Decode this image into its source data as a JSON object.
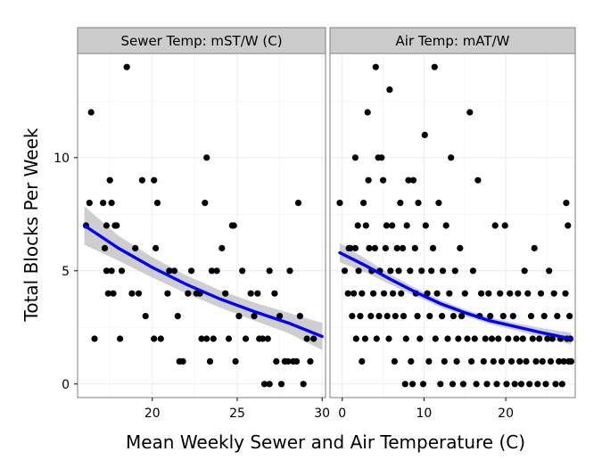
{
  "chart_data": {
    "type": "scatter",
    "ylabel": "Total Blocks Per Week",
    "xlabel": "Mean Weekly Sewer and Air Temperature (C)",
    "colors": {
      "points": "#000000",
      "smooth_line": "#0000ff",
      "ribbon": "#bdbdbd",
      "strip": "#cccccc",
      "grid": "#ececec"
    },
    "ylim": [
      -0.6,
      14.6
    ],
    "y_ticks": [
      0,
      5,
      10
    ],
    "facets": [
      {
        "title": "Sewer Temp: mST/W (C)",
        "xlim": [
          15.6,
          30.2
        ],
        "x_ticks": [
          20,
          25,
          30
        ],
        "points": [
          [
            16.1,
            7
          ],
          [
            16.3,
            8
          ],
          [
            16.4,
            12
          ],
          [
            16.6,
            2
          ],
          [
            17.1,
            8
          ],
          [
            17.3,
            7
          ],
          [
            17.2,
            6
          ],
          [
            17.4,
            4
          ],
          [
            17.3,
            5
          ],
          [
            17.5,
            9
          ],
          [
            17.6,
            8
          ],
          [
            17.6,
            5
          ],
          [
            17.7,
            4
          ],
          [
            17.8,
            7
          ],
          [
            17.9,
            7
          ],
          [
            18.1,
            2
          ],
          [
            18.2,
            5
          ],
          [
            18.5,
            14
          ],
          [
            18.8,
            4
          ],
          [
            19.0,
            6
          ],
          [
            19.2,
            4
          ],
          [
            19.4,
            9
          ],
          [
            19.6,
            3
          ],
          [
            20.1,
            9
          ],
          [
            20.2,
            6
          ],
          [
            20.3,
            8
          ],
          [
            20.1,
            2
          ],
          [
            20.5,
            2
          ],
          [
            20.9,
            4
          ],
          [
            21.0,
            5
          ],
          [
            21.3,
            5
          ],
          [
            21.5,
            3
          ],
          [
            21.6,
            1
          ],
          [
            21.8,
            1
          ],
          [
            22.1,
            4
          ],
          [
            22.3,
            5
          ],
          [
            22.6,
            4
          ],
          [
            22.8,
            4
          ],
          [
            22.9,
            2
          ],
          [
            23.1,
            8
          ],
          [
            23.2,
            10
          ],
          [
            23.2,
            2
          ],
          [
            23.4,
            1
          ],
          [
            23.5,
            5
          ],
          [
            23.6,
            2
          ],
          [
            23.8,
            5
          ],
          [
            24.1,
            6
          ],
          [
            24.3,
            4
          ],
          [
            24.5,
            2
          ],
          [
            24.7,
            7
          ],
          [
            24.8,
            7
          ],
          [
            24.9,
            1
          ],
          [
            25.1,
            3
          ],
          [
            25.3,
            5
          ],
          [
            25.5,
            2
          ],
          [
            25.8,
            4
          ],
          [
            26.0,
            3
          ],
          [
            26.2,
            4
          ],
          [
            26.3,
            2
          ],
          [
            26.5,
            2
          ],
          [
            26.6,
            0
          ],
          [
            26.8,
            2
          ],
          [
            26.9,
            0
          ],
          [
            26.9,
            5
          ],
          [
            27.2,
            4
          ],
          [
            27.3,
            1
          ],
          [
            27.5,
            3
          ],
          [
            27.6,
            0
          ],
          [
            27.8,
            1
          ],
          [
            28.0,
            1
          ],
          [
            28.1,
            5
          ],
          [
            28.3,
            1
          ],
          [
            28.5,
            1
          ],
          [
            28.6,
            8
          ],
          [
            28.7,
            3
          ],
          [
            28.9,
            0
          ],
          [
            29.1,
            2
          ],
          [
            29.3,
            1
          ],
          [
            29.5,
            2
          ]
        ],
        "fit": [
          [
            16,
            7.0
          ],
          [
            18,
            6.0
          ],
          [
            20,
            5.15
          ],
          [
            22,
            4.4
          ],
          [
            24,
            3.75
          ],
          [
            26,
            3.2
          ],
          [
            28,
            2.7
          ],
          [
            30,
            2.1
          ]
        ],
        "ribbon_halfwidth": [
          0.85,
          0.55,
          0.45,
          0.4,
          0.38,
          0.4,
          0.45,
          0.6
        ]
      },
      {
        "title": "Air Temp: mAT/W",
        "xlim": [
          -1.5,
          28.5
        ],
        "x_ticks": [
          0,
          10,
          20
        ],
        "points": [
          [
            -0.3,
            8
          ],
          [
            0.3,
            5
          ],
          [
            0.7,
            4
          ],
          [
            0.8,
            6
          ],
          [
            1.0,
            6
          ],
          [
            1.2,
            3
          ],
          [
            1.4,
            4
          ],
          [
            1.6,
            10
          ],
          [
            1.6,
            6
          ],
          [
            1.7,
            2
          ],
          [
            1.9,
            7
          ],
          [
            2.0,
            5
          ],
          [
            2.2,
            3
          ],
          [
            2.4,
            4
          ],
          [
            2.4,
            1
          ],
          [
            2.6,
            8
          ],
          [
            2.8,
            2
          ],
          [
            2.9,
            7
          ],
          [
            3.1,
            12
          ],
          [
            3.2,
            9
          ],
          [
            3.3,
            6
          ],
          [
            3.5,
            3
          ],
          [
            3.6,
            5
          ],
          [
            3.8,
            4
          ],
          [
            4.0,
            6
          ],
          [
            4.1,
            14
          ],
          [
            4.2,
            2
          ],
          [
            4.4,
            10
          ],
          [
            4.5,
            3
          ],
          [
            4.6,
            5
          ],
          [
            4.8,
            10
          ],
          [
            5.0,
            9
          ],
          [
            5.1,
            4
          ],
          [
            5.3,
            6
          ],
          [
            5.4,
            7
          ],
          [
            5.5,
            3
          ],
          [
            5.7,
            2
          ],
          [
            5.8,
            13
          ],
          [
            5.9,
            5
          ],
          [
            6.1,
            7
          ],
          [
            6.2,
            4
          ],
          [
            6.4,
            1
          ],
          [
            6.5,
            3
          ],
          [
            6.7,
            6
          ],
          [
            6.9,
            5
          ],
          [
            7.1,
            8
          ],
          [
            7.2,
            4
          ],
          [
            7.4,
            6
          ],
          [
            7.5,
            3
          ],
          [
            7.7,
            0
          ],
          [
            7.8,
            2
          ],
          [
            7.9,
            7
          ],
          [
            8.1,
            9
          ],
          [
            8.3,
            5
          ],
          [
            8.4,
            1
          ],
          [
            8.6,
            0
          ],
          [
            8.7,
            9
          ],
          [
            8.9,
            6
          ],
          [
            9.0,
            4
          ],
          [
            9.2,
            3
          ],
          [
            9.3,
            8
          ],
          [
            9.5,
            2
          ],
          [
            9.7,
            5
          ],
          [
            9.9,
            0
          ],
          [
            10.1,
            11
          ],
          [
            10.2,
            7
          ],
          [
            10.4,
            4
          ],
          [
            10.6,
            1
          ],
          [
            10.7,
            3
          ],
          [
            10.9,
            5
          ],
          [
            11.1,
            6
          ],
          [
            11.3,
            14
          ],
          [
            11.4,
            2
          ],
          [
            11.6,
            4
          ],
          [
            11.8,
            8
          ],
          [
            12.0,
            0
          ],
          [
            12.2,
            3
          ],
          [
            12.3,
            5
          ],
          [
            12.5,
            1
          ],
          [
            12.7,
            7
          ],
          [
            12.9,
            2
          ],
          [
            13.1,
            4
          ],
          [
            13.3,
            10
          ],
          [
            13.5,
            0
          ],
          [
            13.6,
            3
          ],
          [
            13.8,
            5
          ],
          [
            14.0,
            1
          ],
          [
            14.2,
            2
          ],
          [
            14.4,
            6
          ],
          [
            14.6,
            3
          ],
          [
            14.8,
            0
          ],
          [
            15.0,
            4
          ],
          [
            15.3,
            2
          ],
          [
            15.6,
            12
          ],
          [
            15.8,
            1
          ],
          [
            16.0,
            5
          ],
          [
            16.2,
            2
          ],
          [
            16.4,
            0
          ],
          [
            16.6,
            9
          ],
          [
            16.8,
            3
          ],
          [
            17.0,
            4
          ],
          [
            17.3,
            1
          ],
          [
            17.5,
            2
          ],
          [
            17.7,
            0
          ],
          [
            17.9,
            4
          ],
          [
            18.1,
            3
          ],
          [
            18.3,
            2
          ],
          [
            18.5,
            1
          ],
          [
            18.7,
            7
          ],
          [
            18.9,
            0
          ],
          [
            19.1,
            2
          ],
          [
            19.3,
            4
          ],
          [
            19.5,
            1
          ],
          [
            19.7,
            3
          ],
          [
            19.9,
            7
          ],
          [
            20.1,
            0
          ],
          [
            20.3,
            2
          ],
          [
            20.5,
            4
          ],
          [
            20.7,
            1
          ],
          [
            20.9,
            3
          ],
          [
            21.1,
            0
          ],
          [
            21.3,
            2
          ],
          [
            21.5,
            4
          ],
          [
            21.7,
            1
          ],
          [
            21.9,
            0
          ],
          [
            22.1,
            2
          ],
          [
            22.3,
            5
          ],
          [
            22.5,
            1
          ],
          [
            22.7,
            4
          ],
          [
            22.9,
            0
          ],
          [
            23.1,
            3
          ],
          [
            23.3,
            2
          ],
          [
            23.5,
            6
          ],
          [
            23.7,
            1
          ],
          [
            23.9,
            0
          ],
          [
            24.1,
            2
          ],
          [
            24.3,
            4
          ],
          [
            24.5,
            1
          ],
          [
            24.7,
            3
          ],
          [
            24.9,
            0
          ],
          [
            25.1,
            2
          ],
          [
            25.3,
            5
          ],
          [
            25.5,
            1
          ],
          [
            25.7,
            2
          ],
          [
            25.9,
            4
          ],
          [
            26.1,
            0
          ],
          [
            26.3,
            3
          ],
          [
            26.5,
            1
          ],
          [
            26.7,
            2
          ],
          [
            26.9,
            0
          ],
          [
            27.1,
            1
          ],
          [
            27.3,
            4
          ],
          [
            27.4,
            8
          ],
          [
            27.5,
            2
          ],
          [
            27.6,
            7
          ],
          [
            27.7,
            1
          ],
          [
            27.8,
            3
          ],
          [
            27.9,
            2
          ],
          [
            28.0,
            1
          ]
        ],
        "fit": [
          [
            -0.3,
            5.8
          ],
          [
            3,
            5.2
          ],
          [
            6,
            4.6
          ],
          [
            9,
            4.05
          ],
          [
            12,
            3.55
          ],
          [
            15,
            3.15
          ],
          [
            18,
            2.8
          ],
          [
            21,
            2.55
          ],
          [
            24,
            2.3
          ],
          [
            28,
            2.0
          ]
        ],
        "ribbon_halfwidth": [
          0.42,
          0.3,
          0.22,
          0.18,
          0.16,
          0.15,
          0.15,
          0.16,
          0.19,
          0.26
        ]
      }
    ]
  }
}
